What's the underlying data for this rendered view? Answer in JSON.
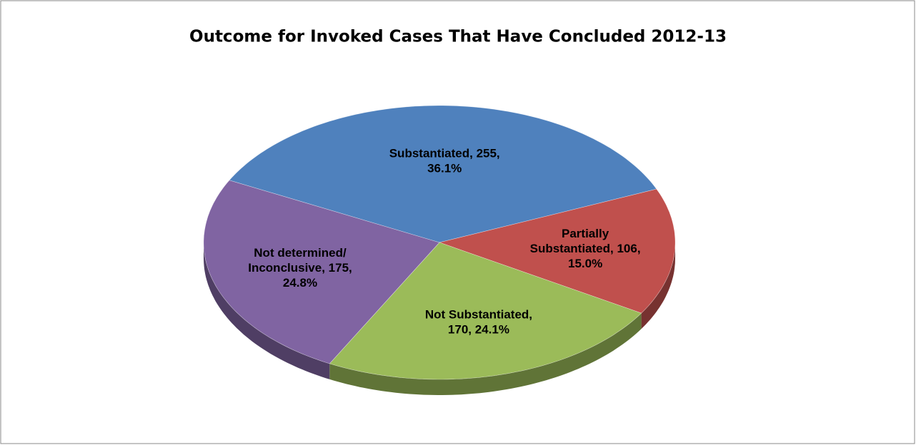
{
  "chart_data": {
    "type": "pie",
    "title": "Outcome for Invoked Cases That Have Concluded 2012-13",
    "values": [
      255,
      106,
      170,
      175
    ],
    "value_labels": [
      "Substantiated, 255, 36.1%",
      "Partially Substantiated, 106, 15.0%",
      "Not Substantiated, 170, 24.1%",
      "Not determined/ Inconclusive, 175, 24.8%"
    ],
    "colors": [
      "#4f81bd",
      "#c0504d",
      "#9bbb59",
      "#8064a2"
    ]
  }
}
